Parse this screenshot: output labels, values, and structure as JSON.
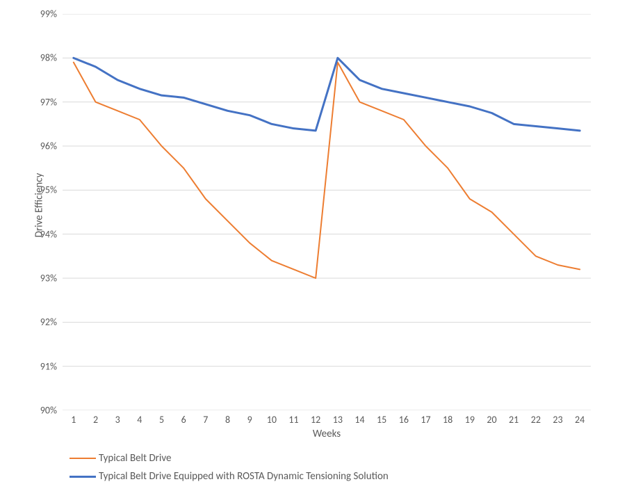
{
  "chart": {
    "type": "line",
    "ylabel": "Drive Efficiency",
    "xlabel": "Weeks",
    "label_fontsize": 15,
    "tick_fontsize": 14,
    "background_color": "#ffffff",
    "grid_color": "#d9d9d9",
    "grid_width": 1,
    "text_color": "#595959",
    "ylim": [
      90,
      99
    ],
    "ytick_step": 1,
    "ytick_format_suffix": "%",
    "x_categories": [
      1,
      2,
      3,
      4,
      5,
      6,
      7,
      8,
      9,
      10,
      11,
      12,
      13,
      14,
      15,
      16,
      17,
      18,
      19,
      20,
      21,
      22,
      23,
      24
    ],
    "series": [
      {
        "name": "Typical Belt Drive",
        "color": "#ed7d31",
        "line_width": 2,
        "values": [
          97.9,
          97.0,
          96.8,
          96.6,
          96.0,
          95.5,
          94.8,
          94.3,
          93.8,
          93.4,
          93.2,
          93.0,
          97.9,
          97.0,
          96.8,
          96.6,
          96.0,
          95.5,
          94.8,
          94.5,
          94.0,
          93.5,
          93.3,
          93.2
        ]
      },
      {
        "name": "Typical Belt Drive Equipped with ROSTA Dynamic Tensioning Solution",
        "color": "#4472c4",
        "line_width": 3,
        "values": [
          98.0,
          97.8,
          97.5,
          97.3,
          97.15,
          97.1,
          96.95,
          96.8,
          96.7,
          96.5,
          96.4,
          96.35,
          98.0,
          97.5,
          97.3,
          97.2,
          97.1,
          97.0,
          96.9,
          96.75,
          96.5,
          96.45,
          96.4,
          96.35
        ]
      }
    ]
  }
}
